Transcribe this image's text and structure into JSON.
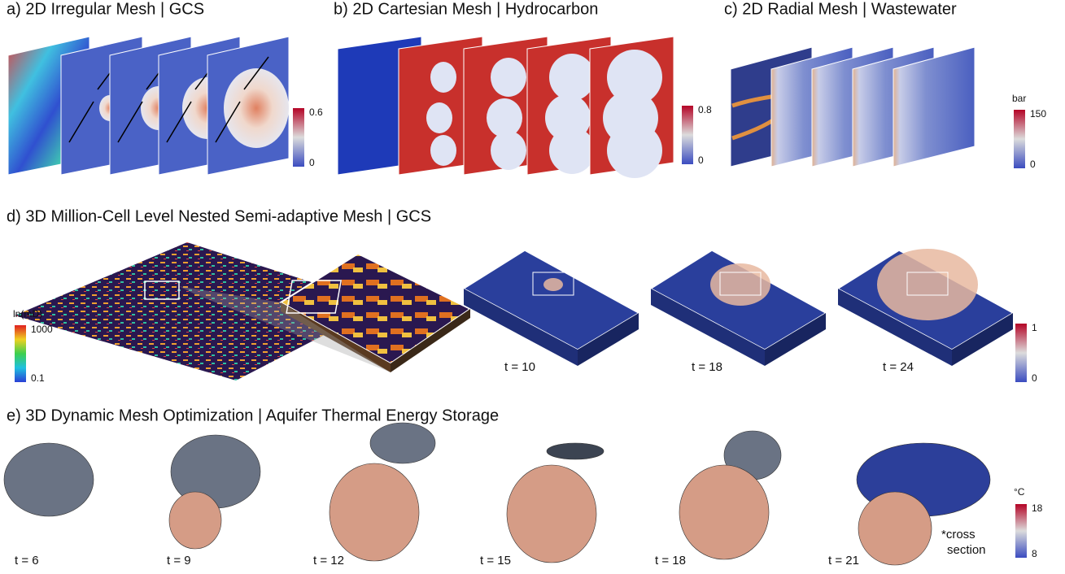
{
  "panels": [
    {
      "title": "a) 2D Irregular Mesh | GCS",
      "colorbar": {
        "ticks": [
          "0.6",
          "0"
        ]
      }
    },
    {
      "title": "b) 2D Cartesian Mesh | Hydrocarbon",
      "colorbar": {
        "ticks": [
          "0.8",
          "0"
        ]
      }
    },
    {
      "title": "c) 2D Radial Mesh | Wastewater",
      "colorbar": {
        "unit": "bar",
        "ticks": [
          "150",
          "0"
        ]
      }
    },
    {
      "title": "d) 3D Million-Cell Level Nested Semi-adaptive Mesh | GCS",
      "permeability_colorbar": {
        "unit": "ln(mD)",
        "ticks": [
          "1000",
          "0.1"
        ]
      },
      "time_labels": [
        "t = 10",
        "t = 18",
        "t = 24"
      ],
      "colorbar": {
        "ticks": [
          "1",
          "0"
        ]
      }
    },
    {
      "title": "e) 3D Dynamic Mesh Optimization | Aquifer Thermal Energy Storage",
      "time_labels": [
        "t = 6",
        "t = 9",
        "t = 12",
        "t = 15",
        "t = 18",
        "t = 21"
      ],
      "annotation": [
        "*cross",
        "section"
      ],
      "colorbar": {
        "unit": "°C",
        "ticks": [
          "18",
          "8"
        ]
      }
    }
  ]
}
